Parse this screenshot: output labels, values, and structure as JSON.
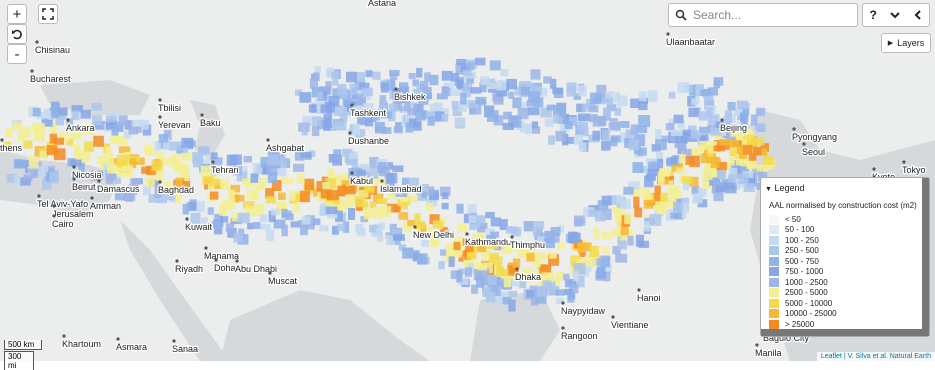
{
  "controls": {
    "zoom_in": "+",
    "zoom_out": "-",
    "help": "?",
    "layers": "Layers"
  },
  "search": {
    "placeholder": "Search..."
  },
  "legend": {
    "title": "Legend",
    "subtitle": "AAL normalised by construction cost (m2)",
    "items": [
      {
        "label": "< 50",
        "color": "#f4f8fc"
      },
      {
        "label": "50 - 100",
        "color": "#dfeaf6"
      },
      {
        "label": "100 - 250",
        "color": "#c6d9f0"
      },
      {
        "label": "250 - 500",
        "color": "#abc6ec"
      },
      {
        "label": "500 - 750",
        "color": "#8fb2e8"
      },
      {
        "label": "750 - 1000",
        "color": "#86a6e6"
      },
      {
        "label": "1000 - 2500",
        "color": "#9fb4e6"
      },
      {
        "label": "2500 - 5000",
        "color": "#f3ee93"
      },
      {
        "label": "5000 - 10000",
        "color": "#f5da4c"
      },
      {
        "label": "10000 - 25000",
        "color": "#f6b733"
      },
      {
        "label": "> 25000",
        "color": "#f48b22"
      }
    ]
  },
  "cities": [
    "Astana",
    "Chisinau",
    "Bucharest",
    "Ulaanbaatar",
    "Bishkek",
    "Tbilisi",
    "Tashkent",
    "Ankara",
    "Yerevan",
    "Baku",
    "Beijing",
    "Pyongyang",
    "thens",
    "Ashgabat",
    "Dushanbe",
    "Seoul",
    "Tehran",
    "Nicosia",
    "Beirut",
    "Damascus",
    "Kabul",
    "Islamabad",
    "Tokyo",
    "Kyoto",
    "Baghdad",
    "Tel Aviv-Yafo",
    "Amman",
    "Jerusalem",
    "Cairo",
    "Kuwait",
    "New Delhi",
    "Kathmandu",
    "Thimphu",
    "Manama",
    "Riyadh",
    "Doha",
    "Abu Dhabi",
    "Dhaka",
    "Muscat",
    "Hanoi",
    "Naypyidaw",
    "Vientiane",
    "Baguio City",
    "Rangoon",
    "Khartoum",
    "Asmara",
    "Sanaa",
    "Manila"
  ],
  "scale": [
    "500 km",
    "300 mi"
  ],
  "attribution": [
    "Leaflet | V. Silva et al.",
    "Natural Earth"
  ]
}
